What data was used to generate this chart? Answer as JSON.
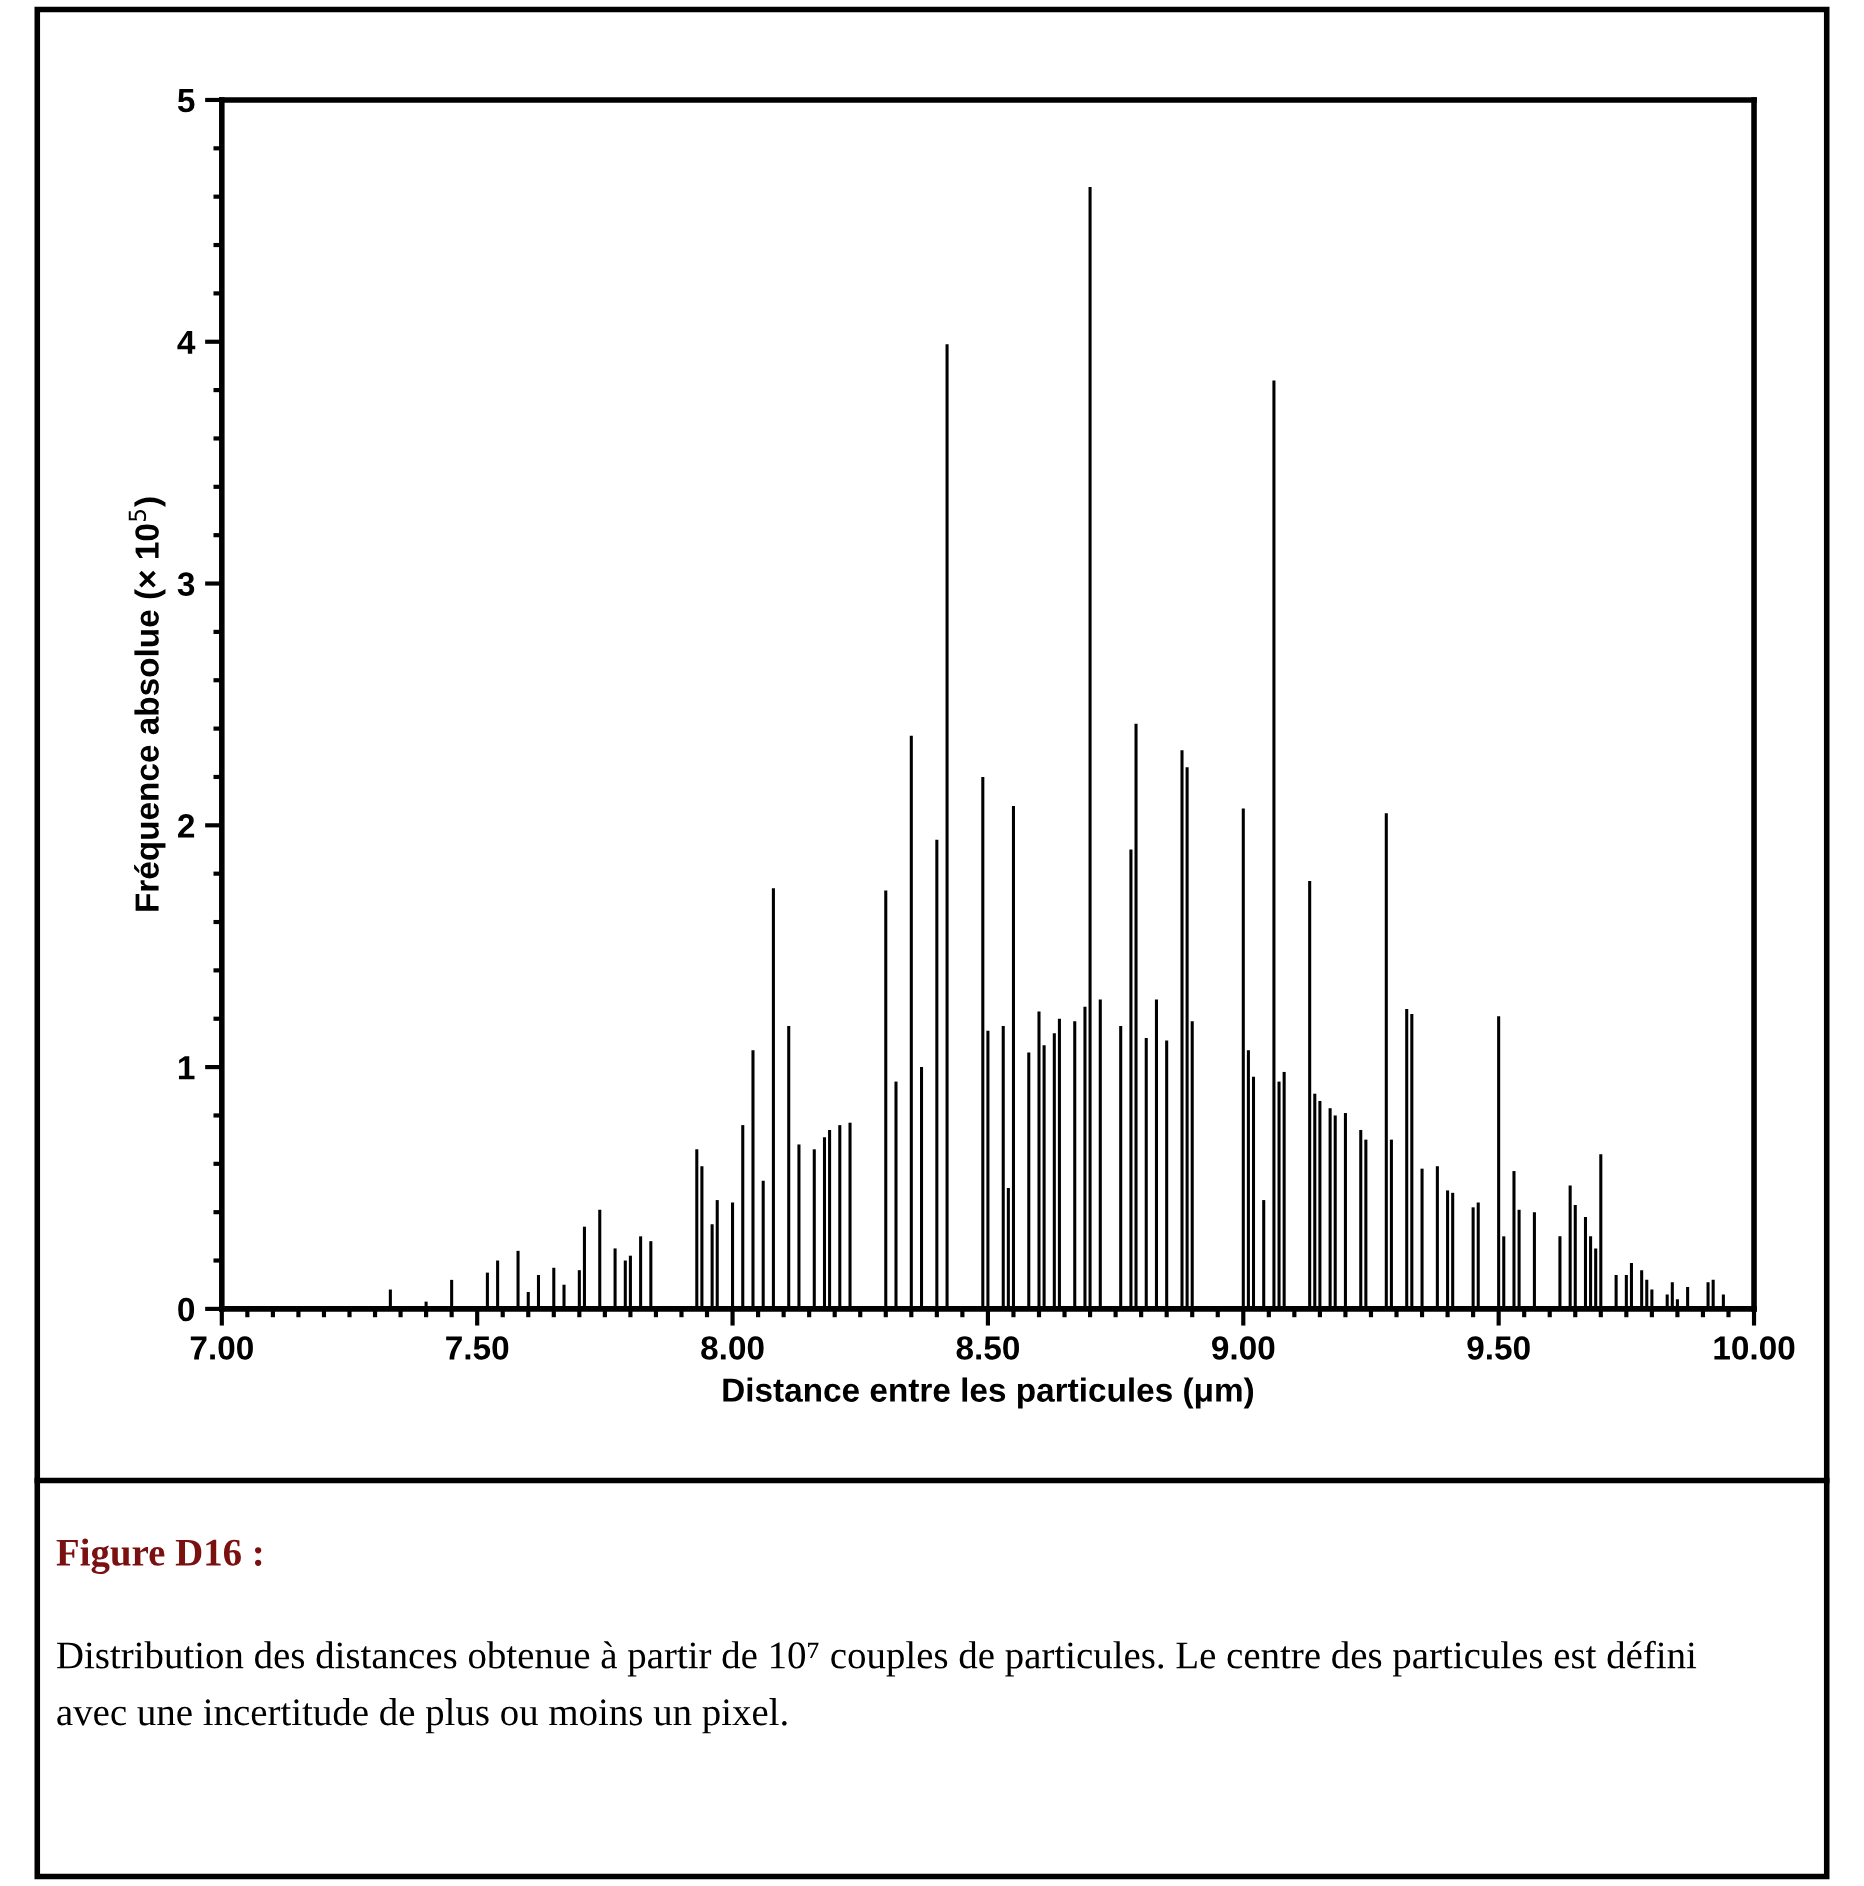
{
  "chart_data": {
    "type": "bar",
    "xlabel": "Distance entre les particules (μm)",
    "ylabel": "Fréquence absolue (× 10$^{5}$)",
    "annotations": [
      "Figure D16 :",
      "Distribution des distances obtenue à partir de 10⁷ couples de particules. Le centre des particules est défini avec une incertitude de plus ou moins un pixel."
    ],
    "x": [
      7.33,
      7.4,
      7.45,
      7.52,
      7.54,
      7.58,
      7.6,
      7.62,
      7.65,
      7.67,
      7.7,
      7.71,
      7.74,
      7.77,
      7.79,
      7.8,
      7.82,
      7.84,
      7.93,
      7.94,
      7.96,
      7.97,
      8.0,
      8.02,
      8.04,
      8.06,
      8.08,
      8.11,
      8.13,
      8.16,
      8.18,
      8.19,
      8.21,
      8.23,
      8.3,
      8.32,
      8.35,
      8.37,
      8.4,
      8.42,
      8.49,
      8.5,
      8.53,
      8.54,
      8.55,
      8.58,
      8.6,
      8.61,
      8.63,
      8.64,
      8.67,
      8.69,
      8.7,
      8.72,
      8.76,
      8.78,
      8.79,
      8.81,
      8.83,
      8.85,
      8.88,
      8.89,
      8.9,
      9.0,
      9.01,
      9.02,
      9.04,
      9.06,
      9.07,
      9.08,
      9.13,
      9.14,
      9.15,
      9.17,
      9.18,
      9.2,
      9.23,
      9.24,
      9.28,
      9.29,
      9.32,
      9.33,
      9.35,
      9.38,
      9.4,
      9.41,
      9.45,
      9.46,
      9.5,
      9.51,
      9.53,
      9.54,
      9.57,
      9.62,
      9.64,
      9.65,
      9.67,
      9.68,
      9.69,
      9.7,
      9.73,
      9.75,
      9.76,
      9.78,
      9.79,
      9.8,
      9.83,
      9.84,
      9.85,
      9.87,
      9.91,
      9.92,
      9.94
    ],
    "values": [
      0.08,
      0.03,
      0.12,
      0.15,
      0.2,
      0.24,
      0.07,
      0.14,
      0.17,
      0.1,
      0.16,
      0.34,
      0.41,
      0.25,
      0.2,
      0.22,
      0.3,
      0.28,
      0.66,
      0.59,
      0.35,
      0.45,
      0.44,
      0.76,
      1.07,
      0.53,
      1.74,
      1.17,
      0.68,
      0.66,
      0.71,
      0.74,
      0.76,
      0.77,
      1.73,
      0.94,
      2.37,
      1.0,
      1.94,
      3.99,
      2.2,
      1.15,
      1.17,
      0.5,
      2.08,
      1.06,
      1.23,
      1.09,
      1.14,
      1.2,
      1.19,
      1.25,
      4.64,
      1.28,
      1.17,
      1.9,
      2.42,
      1.12,
      1.28,
      1.11,
      2.31,
      2.24,
      1.19,
      2.07,
      1.07,
      0.96,
      0.45,
      3.84,
      0.94,
      0.98,
      1.77,
      0.89,
      0.86,
      0.83,
      0.8,
      0.81,
      0.74,
      0.7,
      2.05,
      0.7,
      1.24,
      1.22,
      0.58,
      0.59,
      0.49,
      0.48,
      0.42,
      0.44,
      1.21,
      0.3,
      0.57,
      0.41,
      0.4,
      0.3,
      0.51,
      0.43,
      0.38,
      0.3,
      0.25,
      0.64,
      0.14,
      0.14,
      0.19,
      0.16,
      0.12,
      0.08,
      0.06,
      0.11,
      0.04,
      0.09,
      0.11,
      0.12,
      0.06
    ],
    "color": "#000000",
    "xlim": [
      7.0,
      10.0
    ],
    "ylim": [
      0,
      5
    ],
    "xticks": [
      {
        "value": 7.0,
        "label": "7.00"
      },
      {
        "value": 7.5,
        "label": "7.50"
      },
      {
        "value": 8.0,
        "label": "8.00"
      },
      {
        "value": 8.5,
        "label": "8.50"
      },
      {
        "value": 9.0,
        "label": "9.00"
      },
      {
        "value": 9.5,
        "label": "9.50"
      },
      {
        "value": 10.0,
        "label": "10.00"
      }
    ],
    "yticks": [
      0,
      1,
      2,
      3,
      4,
      5
    ],
    "grid": false,
    "legend": false
  }
}
